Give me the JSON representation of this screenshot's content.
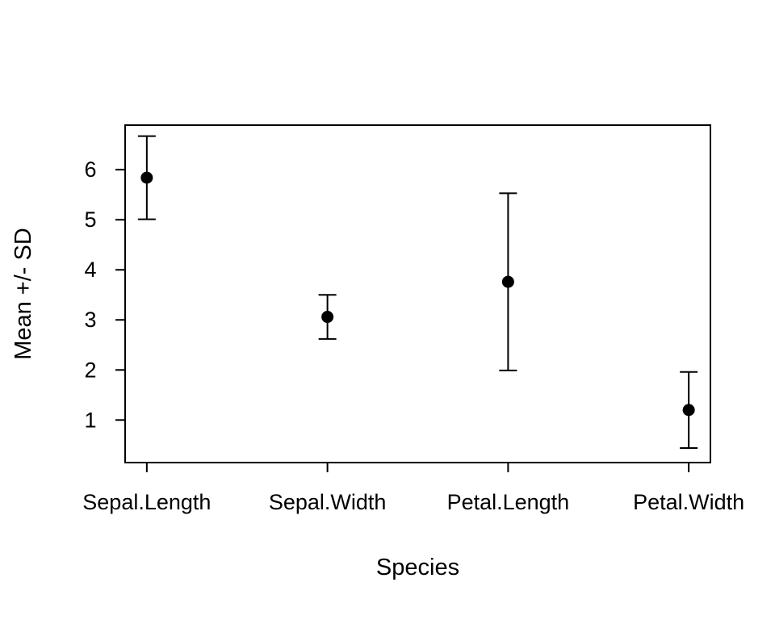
{
  "chart_data": {
    "type": "scatter",
    "error_bars": true,
    "title": "",
    "xlabel": "Species",
    "ylabel": "Mean +/- SD",
    "categories": [
      "Sepal.Length",
      "Sepal.Width",
      "Petal.Length",
      "Petal.Width"
    ],
    "means": [
      5.84,
      3.06,
      3.76,
      1.2
    ],
    "sds": [
      0.83,
      0.44,
      1.77,
      0.76
    ],
    "yticks": [
      1,
      2,
      3,
      4,
      5,
      6
    ],
    "xlim": [
      0.88,
      4.12
    ],
    "ylim": [
      0.15,
      6.89
    ],
    "grid": false,
    "legend": "none",
    "point_color": "#000000",
    "axis_color": "#000000",
    "background": "#ffffff"
  }
}
